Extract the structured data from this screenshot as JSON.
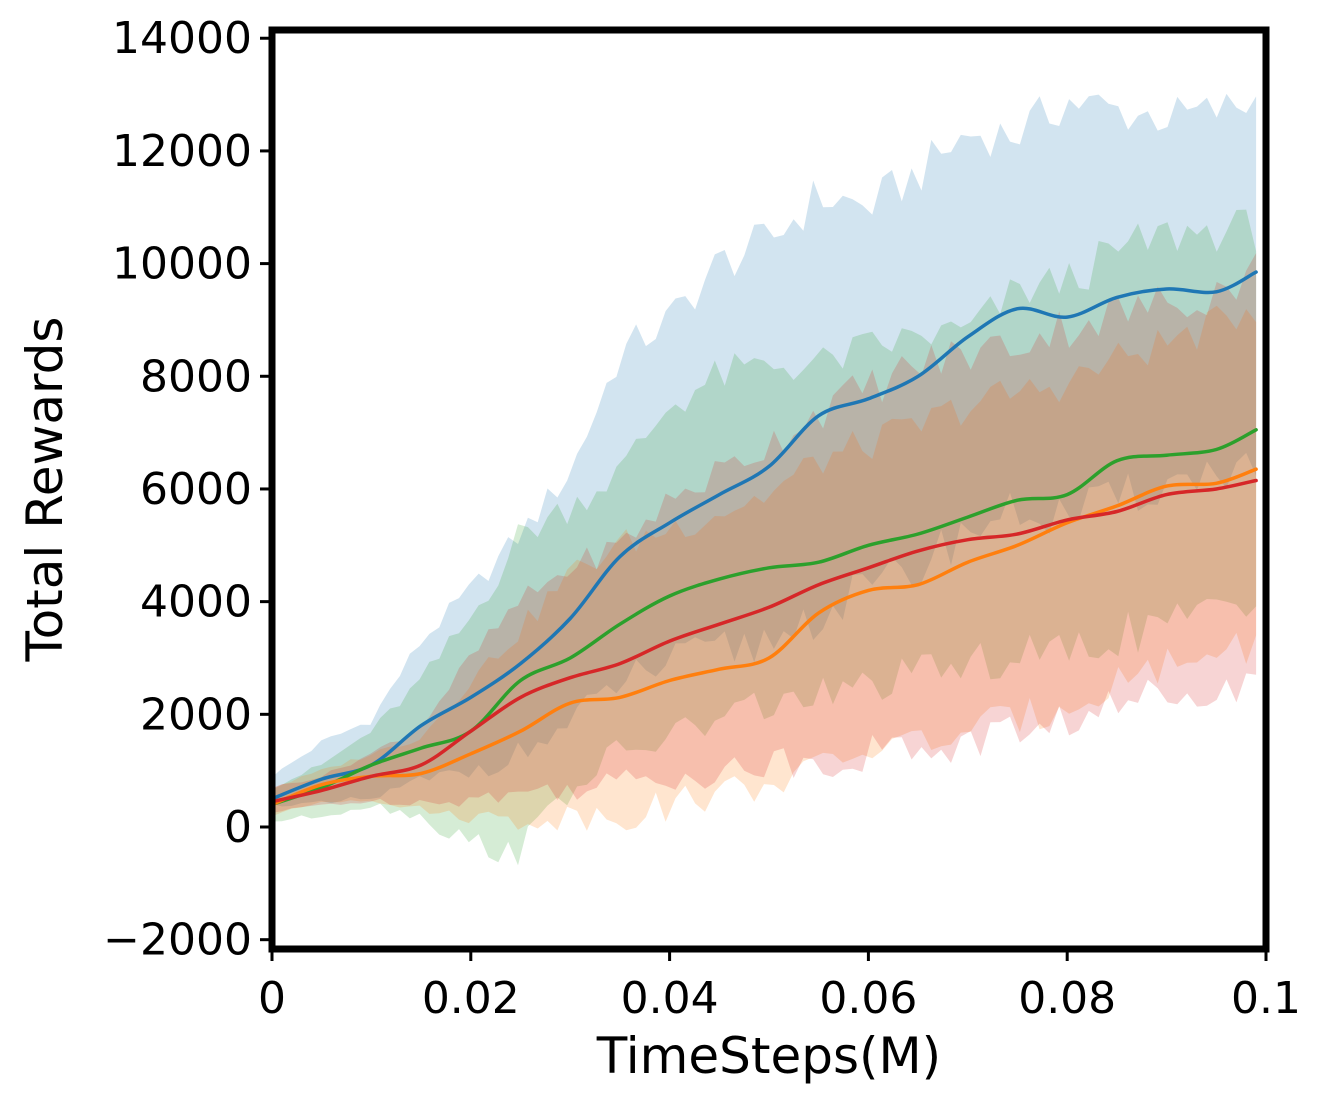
{
  "chart_data": {
    "type": "line",
    "title": "",
    "xlabel": "TimeSteps(M)",
    "ylabel": "Total Rewards",
    "xlim": [
      0,
      0.1
    ],
    "ylim": [
      -2100,
      14200
    ],
    "xticks": [
      0,
      0.02,
      0.04,
      0.06,
      0.08,
      0.1
    ],
    "xtick_labels": [
      "0",
      "0.02",
      "0.04",
      "0.06",
      "0.08",
      "0.1"
    ],
    "yticks": [
      -2000,
      0,
      2000,
      4000,
      6000,
      8000,
      10000,
      12000,
      14000
    ],
    "ytick_labels": [
      "−2000",
      "0",
      "2000",
      "4000",
      "6000",
      "8000",
      "10000",
      "12000",
      "14000"
    ],
    "grid": false,
    "legend": "none",
    "x": [
      0,
      0.005,
      0.01,
      0.015,
      0.02,
      0.025,
      0.03,
      0.035,
      0.04,
      0.045,
      0.05,
      0.055,
      0.06,
      0.065,
      0.07,
      0.075,
      0.08,
      0.085,
      0.09,
      0.095,
      0.099
    ],
    "series": [
      {
        "color": "#1f77b4",
        "values": [
          500,
          850,
          1100,
          1800,
          2300,
          2900,
          3700,
          4800,
          5400,
          5900,
          6400,
          7300,
          7600,
          8000,
          8700,
          9200,
          9050,
          9400,
          9550,
          9500,
          9850
        ],
        "band_lower": [
          400,
          400,
          500,
          800,
          1000,
          1300,
          1800,
          2600,
          2900,
          3100,
          3300,
          3800,
          4200,
          4600,
          5300,
          5600,
          5500,
          5800,
          6100,
          6300,
          6500
        ],
        "band_upper": [
          900,
          1500,
          1900,
          3300,
          4200,
          5200,
          6300,
          8400,
          9000,
          10000,
          10400,
          11200,
          11000,
          11600,
          12300,
          12300,
          12900,
          12700,
          12600,
          12700,
          12900
        ]
      },
      {
        "color": "#2ca02c",
        "values": [
          400,
          700,
          1100,
          1400,
          1700,
          2600,
          3000,
          3600,
          4100,
          4400,
          4600,
          4700,
          5000,
          5200,
          5500,
          5800,
          5900,
          6500,
          6600,
          6700,
          7050
        ],
        "band_lower": [
          100,
          200,
          400,
          200,
          -300,
          -400,
          700,
          1300,
          1600,
          1900,
          2200,
          2300,
          2500,
          2700,
          2900,
          3000,
          3100,
          3400,
          3600,
          3800,
          3900
        ],
        "band_upper": [
          700,
          1100,
          1700,
          2600,
          3700,
          5200,
          5700,
          6300,
          7500,
          8000,
          8200,
          8200,
          8500,
          8700,
          8800,
          9500,
          9700,
          10200,
          10500,
          10600,
          10600
        ]
      },
      {
        "color": "#ff7f0e",
        "values": [
          400,
          750,
          900,
          950,
          1300,
          1700,
          2200,
          2300,
          2600,
          2800,
          3000,
          3800,
          4200,
          4300,
          4700,
          5000,
          5400,
          5700,
          6050,
          6100,
          6350
        ],
        "band_lower": [
          200,
          450,
          500,
          300,
          200,
          100,
          200,
          200,
          400,
          600,
          800,
          1000,
          1400,
          1500,
          1700,
          1900,
          2200,
          2600,
          2900,
          3100,
          3300
        ],
        "band_upper": [
          700,
          1000,
          1300,
          1600,
          2600,
          3500,
          4500,
          5000,
          5300,
          5600,
          5900,
          6500,
          6800,
          7100,
          7500,
          7700,
          7900,
          8300,
          8600,
          8900,
          9300
        ]
      },
      {
        "color": "#d62728",
        "values": [
          450,
          650,
          900,
          1100,
          1700,
          2300,
          2650,
          2900,
          3300,
          3600,
          3900,
          4300,
          4600,
          4900,
          5100,
          5200,
          5450,
          5600,
          5900,
          6000,
          6150
        ],
        "band_lower": [
          250,
          400,
          450,
          450,
          500,
          600,
          700,
          800,
          900,
          1000,
          1100,
          1200,
          1300,
          1400,
          1500,
          1700,
          1900,
          2100,
          2400,
          2600,
          2400
        ],
        "band_upper": [
          700,
          900,
          1300,
          1800,
          3000,
          4000,
          4600,
          5000,
          5800,
          6300,
          6800,
          7400,
          7800,
          8200,
          8400,
          8600,
          8900,
          9100,
          9300,
          9500,
          9900
        ]
      }
    ]
  }
}
